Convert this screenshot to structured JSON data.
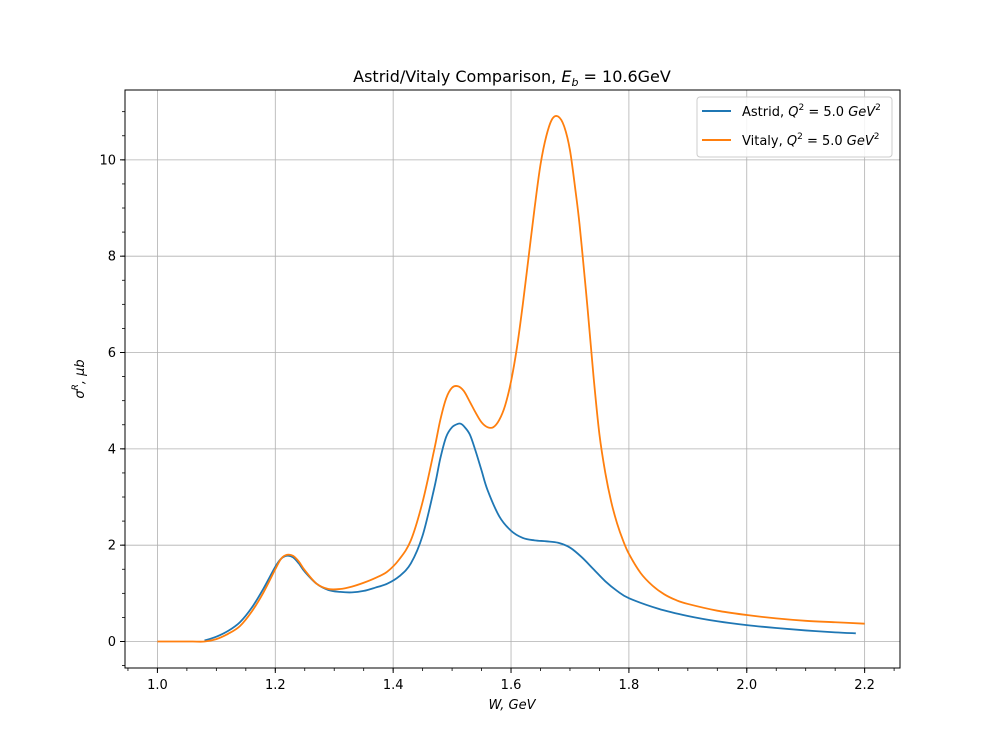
{
  "chart_data": {
    "type": "line",
    "title": {
      "prefix": "Astrid/Vitaly Comparison, ",
      "sym": "E",
      "sub": "b",
      "suffix": " = 10.6GeV"
    },
    "xlabel": "W, GeV",
    "ylabel": {
      "sym": "σ",
      "sup": "R",
      "rest": ", μb"
    },
    "xlim": [
      0.945,
      2.26
    ],
    "ylim": [
      -0.55,
      11.45
    ],
    "x_ticks": [
      "1.0",
      "1.2",
      "1.4",
      "1.6",
      "1.8",
      "2.0",
      "2.2"
    ],
    "y_ticks": [
      "0",
      "2",
      "4",
      "6",
      "8",
      "10"
    ],
    "grid": true,
    "legend_position": "top-right",
    "series": [
      {
        "name": "Astrid, Q² = 5.0 GeV²",
        "legend_parts": {
          "pre": "Astrid, ",
          "q": "Q",
          "mid": " = 5.0 ",
          "unit": "GeV",
          "sup": "2"
        },
        "color": "#1f77b4",
        "x": [
          1.08,
          1.1,
          1.12,
          1.14,
          1.16,
          1.18,
          1.2,
          1.21,
          1.22,
          1.23,
          1.24,
          1.25,
          1.27,
          1.29,
          1.31,
          1.33,
          1.35,
          1.37,
          1.39,
          1.41,
          1.43,
          1.45,
          1.47,
          1.48,
          1.49,
          1.5,
          1.51,
          1.515,
          1.52,
          1.53,
          1.54,
          1.55,
          1.56,
          1.58,
          1.6,
          1.62,
          1.64,
          1.66,
          1.68,
          1.7,
          1.72,
          1.74,
          1.76,
          1.78,
          1.8,
          1.85,
          1.9,
          1.95,
          2.0,
          2.05,
          2.1,
          2.15,
          2.185
        ],
        "y": [
          0.02,
          0.1,
          0.22,
          0.4,
          0.7,
          1.1,
          1.55,
          1.72,
          1.78,
          1.75,
          1.62,
          1.45,
          1.2,
          1.07,
          1.03,
          1.02,
          1.05,
          1.12,
          1.2,
          1.35,
          1.62,
          2.2,
          3.2,
          3.8,
          4.25,
          4.45,
          4.52,
          4.52,
          4.47,
          4.3,
          3.95,
          3.55,
          3.15,
          2.6,
          2.3,
          2.15,
          2.1,
          2.08,
          2.05,
          1.95,
          1.75,
          1.5,
          1.25,
          1.05,
          0.9,
          0.68,
          0.53,
          0.42,
          0.34,
          0.28,
          0.23,
          0.19,
          0.17
        ]
      },
      {
        "name": "Vitaly, Q² = 5.0 GeV²",
        "legend_parts": {
          "pre": "Vitaly, ",
          "q": "Q",
          "mid": " = 5.0 ",
          "unit": "GeV",
          "sup": "2"
        },
        "color": "#ff7f0e",
        "x": [
          1.0,
          1.02,
          1.04,
          1.06,
          1.08,
          1.1,
          1.12,
          1.14,
          1.16,
          1.18,
          1.2,
          1.21,
          1.22,
          1.23,
          1.24,
          1.25,
          1.27,
          1.29,
          1.31,
          1.33,
          1.35,
          1.37,
          1.39,
          1.41,
          1.43,
          1.45,
          1.47,
          1.48,
          1.49,
          1.5,
          1.51,
          1.52,
          1.53,
          1.54,
          1.55,
          1.56,
          1.57,
          1.58,
          1.59,
          1.6,
          1.61,
          1.62,
          1.63,
          1.64,
          1.65,
          1.66,
          1.67,
          1.68,
          1.69,
          1.7,
          1.71,
          1.715,
          1.72,
          1.73,
          1.74,
          1.75,
          1.76,
          1.77,
          1.78,
          1.79,
          1.8,
          1.82,
          1.84,
          1.86,
          1.88,
          1.9,
          1.95,
          2.0,
          2.05,
          2.1,
          2.15,
          2.2
        ],
        "y": [
          0.0,
          0.0,
          0.0,
          0.0,
          0.0,
          0.05,
          0.16,
          0.32,
          0.62,
          1.02,
          1.5,
          1.72,
          1.8,
          1.78,
          1.66,
          1.48,
          1.2,
          1.09,
          1.09,
          1.14,
          1.22,
          1.32,
          1.45,
          1.7,
          2.1,
          2.9,
          4.0,
          4.6,
          5.05,
          5.27,
          5.3,
          5.2,
          4.98,
          4.75,
          4.55,
          4.45,
          4.45,
          4.6,
          4.9,
          5.4,
          6.1,
          7.0,
          8.0,
          9.0,
          9.9,
          10.5,
          10.85,
          10.9,
          10.7,
          10.2,
          9.3,
          8.8,
          8.2,
          6.9,
          5.5,
          4.3,
          3.5,
          2.9,
          2.45,
          2.1,
          1.82,
          1.42,
          1.16,
          0.98,
          0.86,
          0.78,
          0.64,
          0.55,
          0.48,
          0.43,
          0.4,
          0.37
        ]
      }
    ]
  }
}
